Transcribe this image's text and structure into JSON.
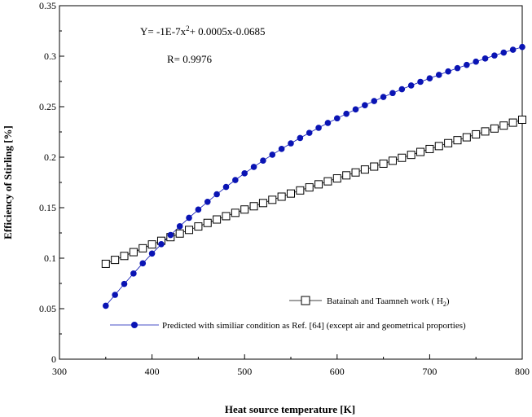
{
  "chart_data": {
    "type": "scatter",
    "title": "",
    "xlabel": "Heat source temperature [K]",
    "ylabel": "Efficiency of Stirling [%]",
    "xlim": [
      300,
      800
    ],
    "ylim": [
      0,
      0.35
    ],
    "xticks": [
      "300",
      "400",
      "500",
      "600",
      "700",
      "800"
    ],
    "yticks": [
      "0",
      "0.05",
      "0.1",
      "0.15",
      "0.2",
      "0.25",
      "0.3",
      "0.35"
    ],
    "grid": false,
    "annotations": {
      "equation_prefix": "Y= -1E-7x",
      "equation_exp": "2",
      "equation_suffix": "+ 0.0005x-0.0685",
      "r_value": "R= 0.9976"
    },
    "legend": {
      "placement": "bottom-right",
      "entries": [
        {
          "label_prefix": "Batainah and Taamneh work ( H",
          "label_sub": "2",
          "label_suffix": ")"
        },
        {
          "label": "Predicted with similiar condition as Ref. [64] (except air and geometrical proporties)"
        }
      ]
    },
    "series": [
      {
        "marker": "open-square",
        "color": "#000000",
        "x": [
          350,
          360,
          370,
          380,
          390,
          400,
          410,
          420,
          430,
          440,
          450,
          460,
          470,
          480,
          490,
          500,
          510,
          520,
          530,
          540,
          550,
          560,
          570,
          580,
          590,
          600,
          610,
          620,
          630,
          640,
          650,
          660,
          670,
          680,
          690,
          700,
          710,
          720,
          730,
          740,
          750,
          760,
          770,
          780,
          790,
          800
        ],
        "y": [
          0.0944,
          0.0983,
          0.1022,
          0.106,
          0.1098,
          0.1136,
          0.1172,
          0.1208,
          0.1244,
          0.128,
          0.1314,
          0.1349,
          0.1383,
          0.1416,
          0.1449,
          0.1482,
          0.1514,
          0.1546,
          0.1578,
          0.1609,
          0.164,
          0.1671,
          0.1701,
          0.1731,
          0.1761,
          0.179,
          0.182,
          0.1849,
          0.1878,
          0.1907,
          0.1936,
          0.1965,
          0.1994,
          0.2023,
          0.2052,
          0.2081,
          0.211,
          0.2139,
          0.2168,
          0.2197,
          0.2226,
          0.2255,
          0.2284,
          0.2313,
          0.2342,
          0.2371
        ]
      },
      {
        "marker": "filled-circle",
        "color": "#0a14b4",
        "x": [
          350,
          360,
          370,
          380,
          390,
          400,
          410,
          420,
          430,
          440,
          450,
          460,
          470,
          480,
          490,
          500,
          510,
          520,
          530,
          540,
          550,
          560,
          570,
          580,
          590,
          600,
          610,
          620,
          630,
          640,
          650,
          660,
          670,
          680,
          690,
          700,
          710,
          720,
          730,
          740,
          750,
          760,
          770,
          780,
          790,
          800
        ],
        "y": [
          0.0529,
          0.0637,
          0.0745,
          0.0848,
          0.0949,
          0.1046,
          0.1139,
          0.1229,
          0.1316,
          0.14,
          0.1481,
          0.1558,
          0.1633,
          0.1705,
          0.1774,
          0.184,
          0.1904,
          0.1966,
          0.2025,
          0.2082,
          0.2137,
          0.219,
          0.2241,
          0.2291,
          0.2339,
          0.2385,
          0.243,
          0.2473,
          0.2515,
          0.2556,
          0.2596,
          0.2635,
          0.2673,
          0.271,
          0.2746,
          0.2781,
          0.2815,
          0.2849,
          0.2882,
          0.2914,
          0.2946,
          0.2977,
          0.3007,
          0.3036,
          0.3064,
          0.3091
        ]
      }
    ]
  }
}
